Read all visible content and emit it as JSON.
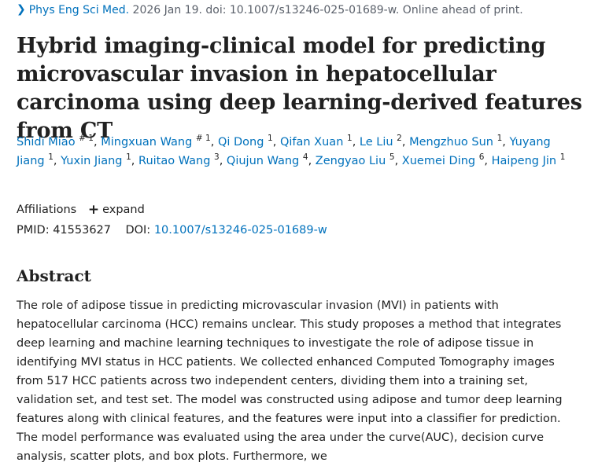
{
  "citation": {
    "journal": "Phys Eng Sci Med.",
    "details": "2026 Jan 19. doi: 10.1007/s13246-025-01689-w. Online ahead of print."
  },
  "title": "Hybrid imaging-clinical model for predicting microvascular invasion in hepatocellular carcinoma using deep learning-derived features from CT",
  "authors": [
    {
      "name": "Shidi Miao",
      "sup": "# 1"
    },
    {
      "name": "Mingxuan Wang",
      "sup": "# 1"
    },
    {
      "name": "Qi Dong",
      "sup": "1"
    },
    {
      "name": "Qifan Xuan",
      "sup": "1"
    },
    {
      "name": "Le Liu",
      "sup": "2"
    },
    {
      "name": "Mengzhuo Sun",
      "sup": "1"
    },
    {
      "name": "Yuyang Jiang",
      "sup": "1"
    },
    {
      "name": "Yuxin Jiang",
      "sup": "1"
    },
    {
      "name": "Ruitao Wang",
      "sup": "3"
    },
    {
      "name": "Qiujun Wang",
      "sup": "4"
    },
    {
      "name": "Zengyao Liu",
      "sup": "5"
    },
    {
      "name": "Xuemei Ding",
      "sup": "6"
    },
    {
      "name": "Haipeng Jin",
      "sup": "1"
    }
  ],
  "affiliations": {
    "label": "Affiliations",
    "expand_label": "expand",
    "expand_icon": "plus-icon"
  },
  "ids": {
    "pmid_label": "PMID:",
    "pmid": "41553627",
    "doi_label": "DOI:",
    "doi": "10.1007/s13246-025-01689-w"
  },
  "abstract": {
    "heading": "Abstract",
    "text": "The role of adipose tissue in predicting microvascular invasion (MVI) in patients with hepatocellular carcinoma (HCC) remains unclear. This study proposes a method that integrates deep learning and machine learning techniques to investigate the role of adipose tissue in identifying MVI status in HCC patients. We collected enhanced Computed Tomography images from 517 HCC patients across two independent centers, dividing them into a training set, validation set, and test set. The model was constructed using adipose and tumor deep learning features along with clinical features, and the features were input into a classifier for prediction. The model performance was evaluated using the area under the curve(AUC), decision curve analysis, scatter plots, and box plots. Furthermore, we"
  },
  "colors": {
    "link": "#0071bc",
    "text": "#212121",
    "muted": "#5b616b"
  }
}
